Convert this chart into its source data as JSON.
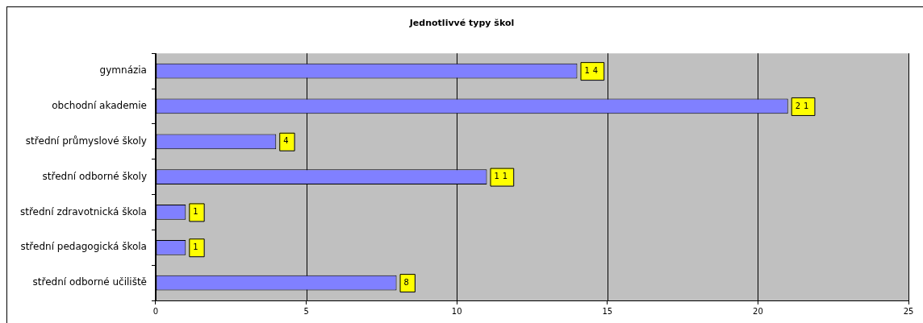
{
  "chart_data": {
    "type": "bar",
    "orientation": "horizontal",
    "title": "Jednotlivvé typy škol",
    "categories": [
      "gymnázia",
      "obchodní akademie",
      "střední průmyslové školy",
      "střední odborné školy",
      "střední zdravotnická škola",
      "střední pedagogická škola",
      "střední odborné učiliště"
    ],
    "values": [
      14,
      21,
      4,
      11,
      1,
      1,
      8
    ],
    "color": "#8080ff",
    "xlim": [
      0,
      25
    ],
    "xticks": [
      0,
      5,
      10,
      15,
      20,
      25
    ],
    "grid": "x",
    "legend": false,
    "data_labels": true
  }
}
